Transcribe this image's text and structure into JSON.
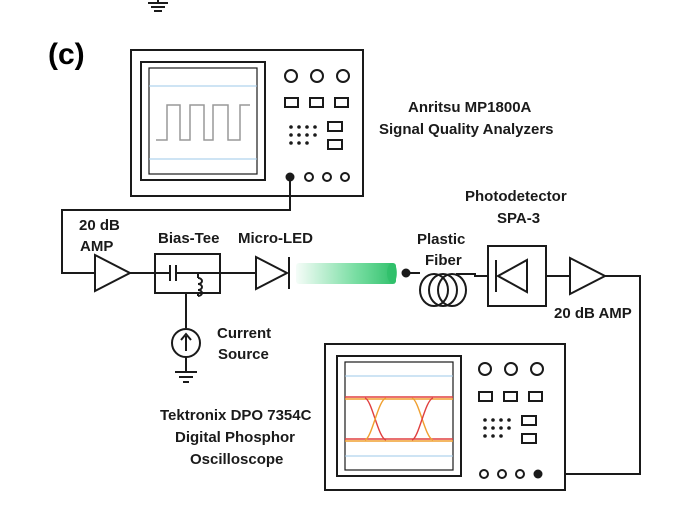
{
  "panel_label": "(c)",
  "instruments": {
    "analyzer": {
      "line1": "Anritsu MP1800A",
      "line2": "Signal Quality Analyzers"
    },
    "oscilloscope": {
      "line1": "Tektronix DPO 7354C",
      "line2": "Digital Phosphor",
      "line3": "Oscilloscope"
    }
  },
  "components": {
    "amp_in": {
      "line1": "20 dB",
      "line2": "AMP"
    },
    "bias_tee": "Bias-Tee",
    "micro_led": "Micro-LED",
    "current_source": {
      "line1": "Current",
      "line2": "Source"
    },
    "fiber": {
      "line1": "Plastic",
      "line2": "Fiber"
    },
    "photodetector": {
      "line1": "Photodetector",
      "line2": "SPA-3"
    },
    "amp_out": "20 dB AMP"
  },
  "colors": {
    "line": "#1a1a1a",
    "screen_grid": "#9ec8e8",
    "light_beam": "#3ecf7a",
    "eye_orange": "#f0a030",
    "eye_red": "#e04040"
  }
}
